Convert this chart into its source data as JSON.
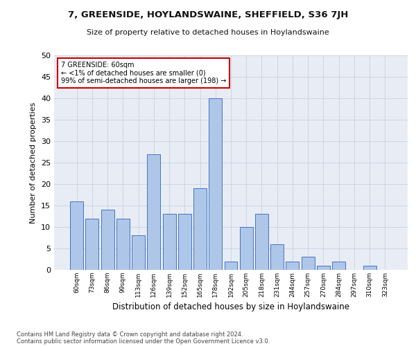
{
  "title1": "7, GREENSIDE, HOYLANDSWAINE, SHEFFIELD, S36 7JH",
  "title2": "Size of property relative to detached houses in Hoylandswaine",
  "xlabel": "Distribution of detached houses by size in Hoylandswaine",
  "ylabel": "Number of detached properties",
  "categories": [
    "60sqm",
    "73sqm",
    "86sqm",
    "99sqm",
    "113sqm",
    "126sqm",
    "139sqm",
    "152sqm",
    "165sqm",
    "178sqm",
    "192sqm",
    "205sqm",
    "218sqm",
    "231sqm",
    "244sqm",
    "257sqm",
    "270sqm",
    "284sqm",
    "297sqm",
    "310sqm",
    "323sqm"
  ],
  "values": [
    16,
    12,
    14,
    12,
    8,
    27,
    13,
    13,
    19,
    40,
    2,
    10,
    13,
    6,
    2,
    3,
    1,
    2,
    0,
    1,
    0
  ],
  "bar_color": "#aec6e8",
  "bar_edge_color": "#4472c4",
  "annotation_line1": "7 GREENSIDE: 60sqm",
  "annotation_line2": "← <1% of detached houses are smaller (0)",
  "annotation_line3": "99% of semi-detached houses are larger (198) →",
  "annotation_box_color": "#ffffff",
  "annotation_box_edge": "#cc0000",
  "ylim": [
    0,
    50
  ],
  "yticks": [
    0,
    5,
    10,
    15,
    20,
    25,
    30,
    35,
    40,
    45,
    50
  ],
  "grid_color": "#cdd5e3",
  "background_color": "#e8edf5",
  "footer1": "Contains HM Land Registry data © Crown copyright and database right 2024.",
  "footer2": "Contains public sector information licensed under the Open Government Licence v3.0."
}
